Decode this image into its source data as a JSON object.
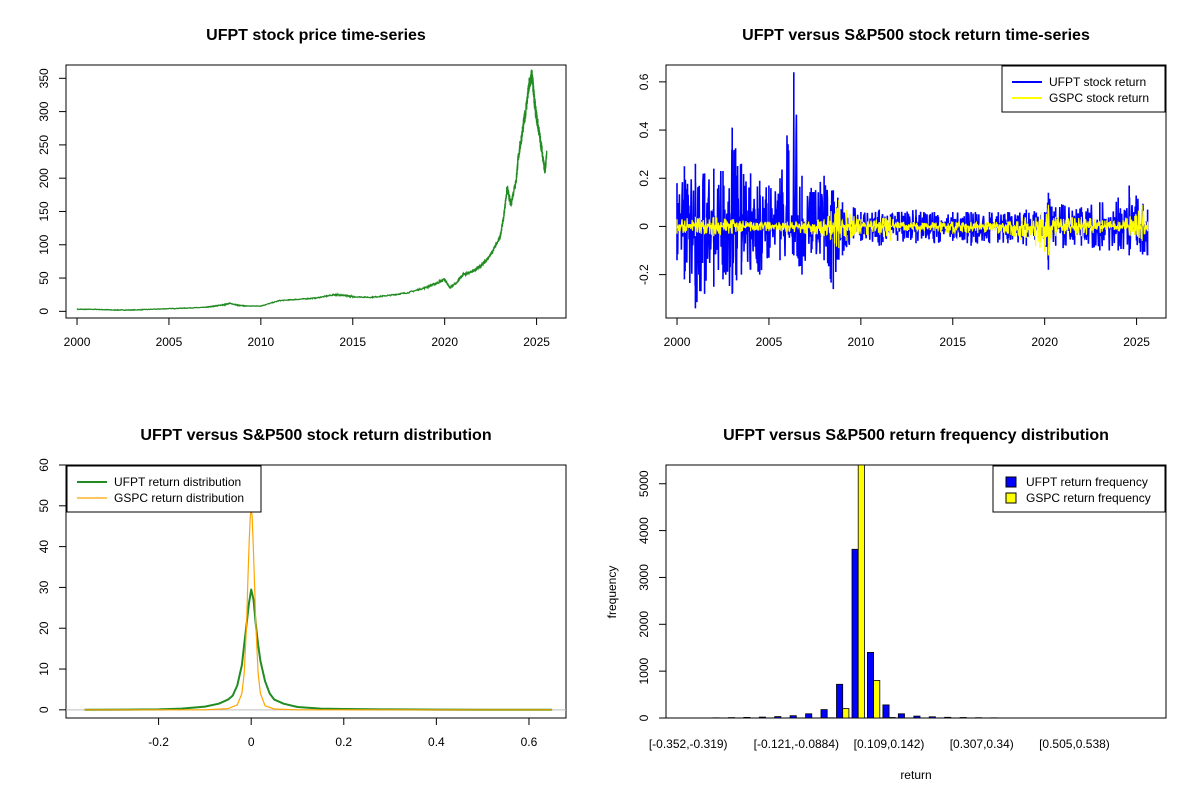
{
  "chart_data": [
    {
      "id": "p1",
      "type": "line",
      "title": "UFPT stock price time-series",
      "xlabel": "",
      "ylabel": "",
      "xlim": [
        1999.4,
        2026.6
      ],
      "ylim": [
        -10,
        370
      ],
      "xticks": [
        2000,
        2005,
        2010,
        2015,
        2020,
        2025
      ],
      "yticks": [
        0,
        50,
        100,
        150,
        200,
        250,
        300,
        350
      ],
      "grid": false,
      "series": [
        {
          "color": "#228B22",
          "x": [
            2000.0,
            2001.0,
            2002.0,
            2003.0,
            2004.0,
            2005.0,
            2006.0,
            2007.0,
            2007.5,
            2008.0,
            2008.3,
            2008.8,
            2009.2,
            2010.0,
            2011.0,
            2012.0,
            2013.0,
            2014.0,
            2014.5,
            2015.0,
            2016.0,
            2017.0,
            2018.0,
            2019.0,
            2019.7,
            2020.0,
            2020.3,
            2020.6,
            2021.0,
            2021.5,
            2022.0,
            2022.5,
            2023.0,
            2023.2,
            2023.4,
            2023.6,
            2023.9,
            2024.0,
            2024.2,
            2024.4,
            2024.6,
            2024.75,
            2024.85,
            2024.95,
            2025.1,
            2025.3,
            2025.45,
            2025.55
          ],
          "values": [
            3,
            3,
            2,
            2,
            3,
            4,
            5,
            6,
            8,
            10,
            12,
            9,
            8,
            8,
            16,
            18,
            20,
            25,
            24,
            22,
            21,
            24,
            28,
            36,
            44,
            48,
            35,
            42,
            55,
            60,
            68,
            85,
            110,
            140,
            185,
            160,
            200,
            230,
            265,
            300,
            340,
            355,
            325,
            300,
            275,
            240,
            210,
            235
          ]
        }
      ]
    },
    {
      "id": "p2",
      "type": "line",
      "title": "UFPT versus S&P500 stock return time-series",
      "xlabel": "",
      "ylabel": "",
      "xlim": [
        1999.4,
        2026.6
      ],
      "ylim": [
        -0.38,
        0.67
      ],
      "xticks": [
        2000,
        2005,
        2010,
        2015,
        2020,
        2025
      ],
      "yticks": [
        -0.2,
        0.0,
        0.2,
        0.4,
        0.6
      ],
      "grid": false,
      "legend_position": "top-right",
      "series": [
        {
          "name": "UFPT stock return",
          "color": "#0000FF",
          "envelope": [
            [
              2000.0,
              0.18,
              -0.14
            ],
            [
              2000.4,
              0.25,
              -0.22
            ],
            [
              2001.0,
              0.26,
              -0.34
            ],
            [
              2001.5,
              0.22,
              -0.28
            ],
            [
              2002.0,
              0.24,
              -0.25
            ],
            [
              2002.5,
              0.23,
              -0.22
            ],
            [
              2003.0,
              0.41,
              -0.28
            ],
            [
              2003.5,
              0.26,
              -0.2
            ],
            [
              2004.0,
              0.22,
              -0.18
            ],
            [
              2004.5,
              0.19,
              -0.2
            ],
            [
              2005.0,
              0.17,
              -0.13
            ],
            [
              2005.6,
              0.2,
              -0.14
            ],
            [
              2006.35,
              0.64,
              -0.12
            ],
            [
              2006.8,
              0.21,
              -0.2
            ],
            [
              2007.3,
              0.16,
              -0.11
            ],
            [
              2008.0,
              0.21,
              -0.14
            ],
            [
              2008.5,
              0.15,
              -0.26
            ],
            [
              2009.0,
              0.1,
              -0.12
            ],
            [
              2009.6,
              0.08,
              -0.05
            ],
            [
              2010.0,
              0.06,
              -0.06
            ],
            [
              2011.0,
              0.07,
              -0.08
            ],
            [
              2012.0,
              0.06,
              -0.06
            ],
            [
              2013.0,
              0.07,
              -0.07
            ],
            [
              2014.0,
              0.06,
              -0.07
            ],
            [
              2015.0,
              0.06,
              -0.06
            ],
            [
              2016.0,
              0.06,
              -0.08
            ],
            [
              2017.0,
              0.06,
              -0.07
            ],
            [
              2018.0,
              0.06,
              -0.07
            ],
            [
              2019.0,
              0.07,
              -0.08
            ],
            [
              2020.0,
              0.06,
              -0.06
            ],
            [
              2020.2,
              0.14,
              -0.18
            ],
            [
              2020.6,
              0.08,
              -0.08
            ],
            [
              2021.0,
              0.09,
              -0.09
            ],
            [
              2022.0,
              0.08,
              -0.08
            ],
            [
              2023.0,
              0.1,
              -0.1
            ],
            [
              2024.0,
              0.12,
              -0.1
            ],
            [
              2024.6,
              0.17,
              -0.12
            ],
            [
              2025.6,
              0.07,
              -0.12
            ]
          ]
        },
        {
          "name": "GSPC stock return",
          "color": "#FFFF00",
          "envelope": [
            [
              2000.0,
              0.03,
              -0.03
            ],
            [
              2001.0,
              0.04,
              -0.04
            ],
            [
              2002.0,
              0.04,
              -0.04
            ],
            [
              2003.0,
              0.03,
              -0.03
            ],
            [
              2004.0,
              0.02,
              -0.02
            ],
            [
              2005.0,
              0.02,
              -0.02
            ],
            [
              2006.0,
              0.02,
              -0.02
            ],
            [
              2007.0,
              0.025,
              -0.03
            ],
            [
              2008.0,
              0.03,
              -0.04
            ],
            [
              2008.8,
              0.11,
              -0.09
            ],
            [
              2009.2,
              0.07,
              -0.06
            ],
            [
              2010.0,
              0.03,
              -0.03
            ],
            [
              2011.6,
              0.04,
              -0.06
            ],
            [
              2012.0,
              0.02,
              -0.02
            ],
            [
              2015.0,
              0.02,
              -0.03
            ],
            [
              2018.0,
              0.02,
              -0.03
            ],
            [
              2020.2,
              0.09,
              -0.12
            ],
            [
              2020.6,
              0.04,
              -0.04
            ],
            [
              2022.0,
              0.04,
              -0.04
            ],
            [
              2024.0,
              0.02,
              -0.02
            ],
            [
              2025.3,
              0.09,
              -0.06
            ],
            [
              2025.6,
              0.02,
              -0.02
            ]
          ]
        }
      ]
    },
    {
      "id": "p3",
      "type": "line",
      "title": "UFPT versus S&P500 stock return distribution",
      "xlabel": "",
      "ylabel": "",
      "xlim": [
        -0.4,
        0.68
      ],
      "ylim": [
        -2,
        60
      ],
      "xticks": [
        -0.2,
        0.0,
        0.2,
        0.4,
        0.6
      ],
      "yticks": [
        0,
        10,
        20,
        30,
        40,
        50,
        60
      ],
      "grid": false,
      "legend_position": "top-left",
      "series": [
        {
          "name": "UFPT return distribution",
          "color": "#228B22",
          "x": [
            -0.36,
            -0.2,
            -0.15,
            -0.1,
            -0.07,
            -0.05,
            -0.04,
            -0.03,
            -0.02,
            -0.015,
            -0.01,
            -0.005,
            0.0,
            0.005,
            0.01,
            0.015,
            0.02,
            0.03,
            0.04,
            0.05,
            0.07,
            0.1,
            0.15,
            0.2,
            0.3,
            0.4,
            0.5,
            0.65
          ],
          "values": [
            0,
            0.1,
            0.3,
            0.8,
            1.5,
            2.5,
            3.5,
            6,
            11,
            16,
            21,
            26,
            29.5,
            27,
            21,
            16,
            12,
            7,
            4,
            2.5,
            1.5,
            0.7,
            0.3,
            0.2,
            0.1,
            0.05,
            0.02,
            0
          ]
        },
        {
          "name": "GSPC return distribution",
          "color": "#FFA500",
          "x": [
            -0.36,
            -0.1,
            -0.05,
            -0.03,
            -0.02,
            -0.015,
            -0.01,
            -0.007,
            -0.004,
            -0.002,
            0.0,
            0.002,
            0.004,
            0.007,
            0.01,
            0.015,
            0.02,
            0.03,
            0.05,
            0.1,
            0.65
          ],
          "values": [
            0,
            0,
            0.3,
            1.2,
            4,
            9,
            21,
            32,
            42,
            47.5,
            49,
            47.5,
            42,
            32,
            21,
            9,
            4,
            1,
            0.2,
            0,
            0
          ]
        }
      ]
    },
    {
      "id": "p4",
      "type": "bar",
      "title": "UFPT versus S&P500 return frequency distribution",
      "xlabel": "return",
      "ylabel": "frequency",
      "ylim": [
        0,
        5400
      ],
      "yticks": [
        0,
        1000,
        2000,
        3000,
        4000,
        5000
      ],
      "xtick_labels": [
        "[-0.352,-0.319)",
        "[-0.121,-0.0884)",
        "[0.109,0.142)",
        "[0.307,0.34)",
        "[0.505,0.538)"
      ],
      "xtick_label_bins": [
        0,
        7,
        13,
        19,
        25
      ],
      "grid": false,
      "legend_position": "top-right",
      "categories": [
        "b1",
        "b2",
        "b3",
        "b4",
        "b5",
        "b6",
        "b7",
        "b8",
        "b9",
        "b10",
        "b11",
        "b12",
        "b13",
        "b14",
        "b15",
        "b16",
        "b17",
        "b18",
        "b19",
        "b20",
        "b21",
        "b22",
        "b23",
        "b24",
        "b25",
        "b26",
        "b27",
        "b28",
        "b29",
        "b30",
        "b31"
      ],
      "series": [
        {
          "name": "UFPT return frequency",
          "color": "#0000FF",
          "values": [
            2,
            3,
            5,
            8,
            12,
            20,
            30,
            50,
            90,
            180,
            720,
            3600,
            1400,
            280,
            90,
            40,
            25,
            15,
            10,
            6,
            4,
            3,
            2,
            2,
            1,
            1,
            1,
            1,
            1,
            1,
            1
          ]
        },
        {
          "name": "GSPC return frequency",
          "color": "#FFFF00",
          "values": [
            0,
            0,
            0,
            0,
            0,
            0,
            0,
            0,
            0,
            5,
            200,
            5400,
            800,
            10,
            0,
            0,
            0,
            0,
            0,
            0,
            0,
            0,
            0,
            0,
            0,
            0,
            0,
            0,
            0,
            0,
            0
          ]
        }
      ]
    }
  ]
}
